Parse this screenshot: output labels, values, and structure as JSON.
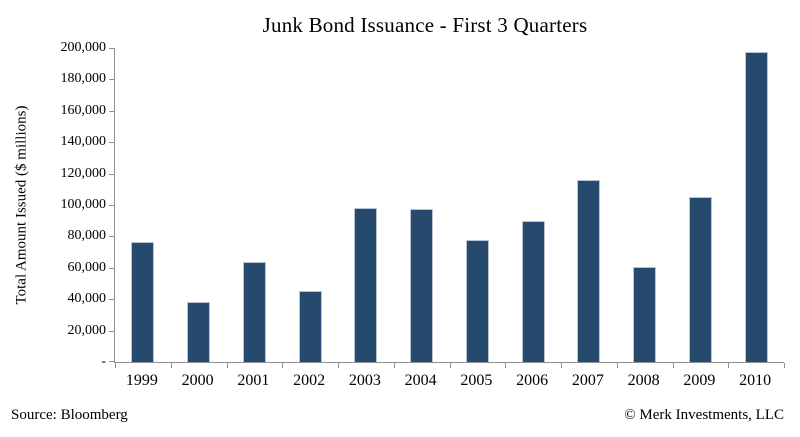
{
  "title": "Junk Bond Issuance - First 3 Quarters",
  "footer": {
    "source": "Source: Bloomberg",
    "copyright": "© Merk Investments, LLC"
  },
  "chart_data": {
    "type": "bar",
    "title": "Junk Bond Issuance - First 3 Quarters",
    "categories": [
      "1999",
      "2000",
      "2001",
      "2002",
      "2003",
      "2004",
      "2005",
      "2006",
      "2007",
      "2008",
      "2009",
      "2010"
    ],
    "values": [
      76500,
      38500,
      64000,
      45000,
      98000,
      97500,
      77500,
      89500,
      116000,
      60500,
      105000,
      197500
    ],
    "xlabel": "",
    "ylabel": "Total Amount Issued ($ millions)",
    "ylim": [
      0,
      200000
    ],
    "ytick_step": 20000,
    "ytick_labels": [
      "-",
      "20,000",
      "40,000",
      "60,000",
      "80,000",
      "100,000",
      "120,000",
      "140,000",
      "160,000",
      "180,000",
      "200,000"
    ],
    "grid": false,
    "legend_position": "none",
    "bar_color": "#254a6e",
    "bar_border_color": "#b9c5d4",
    "axis_color": "#909090"
  }
}
